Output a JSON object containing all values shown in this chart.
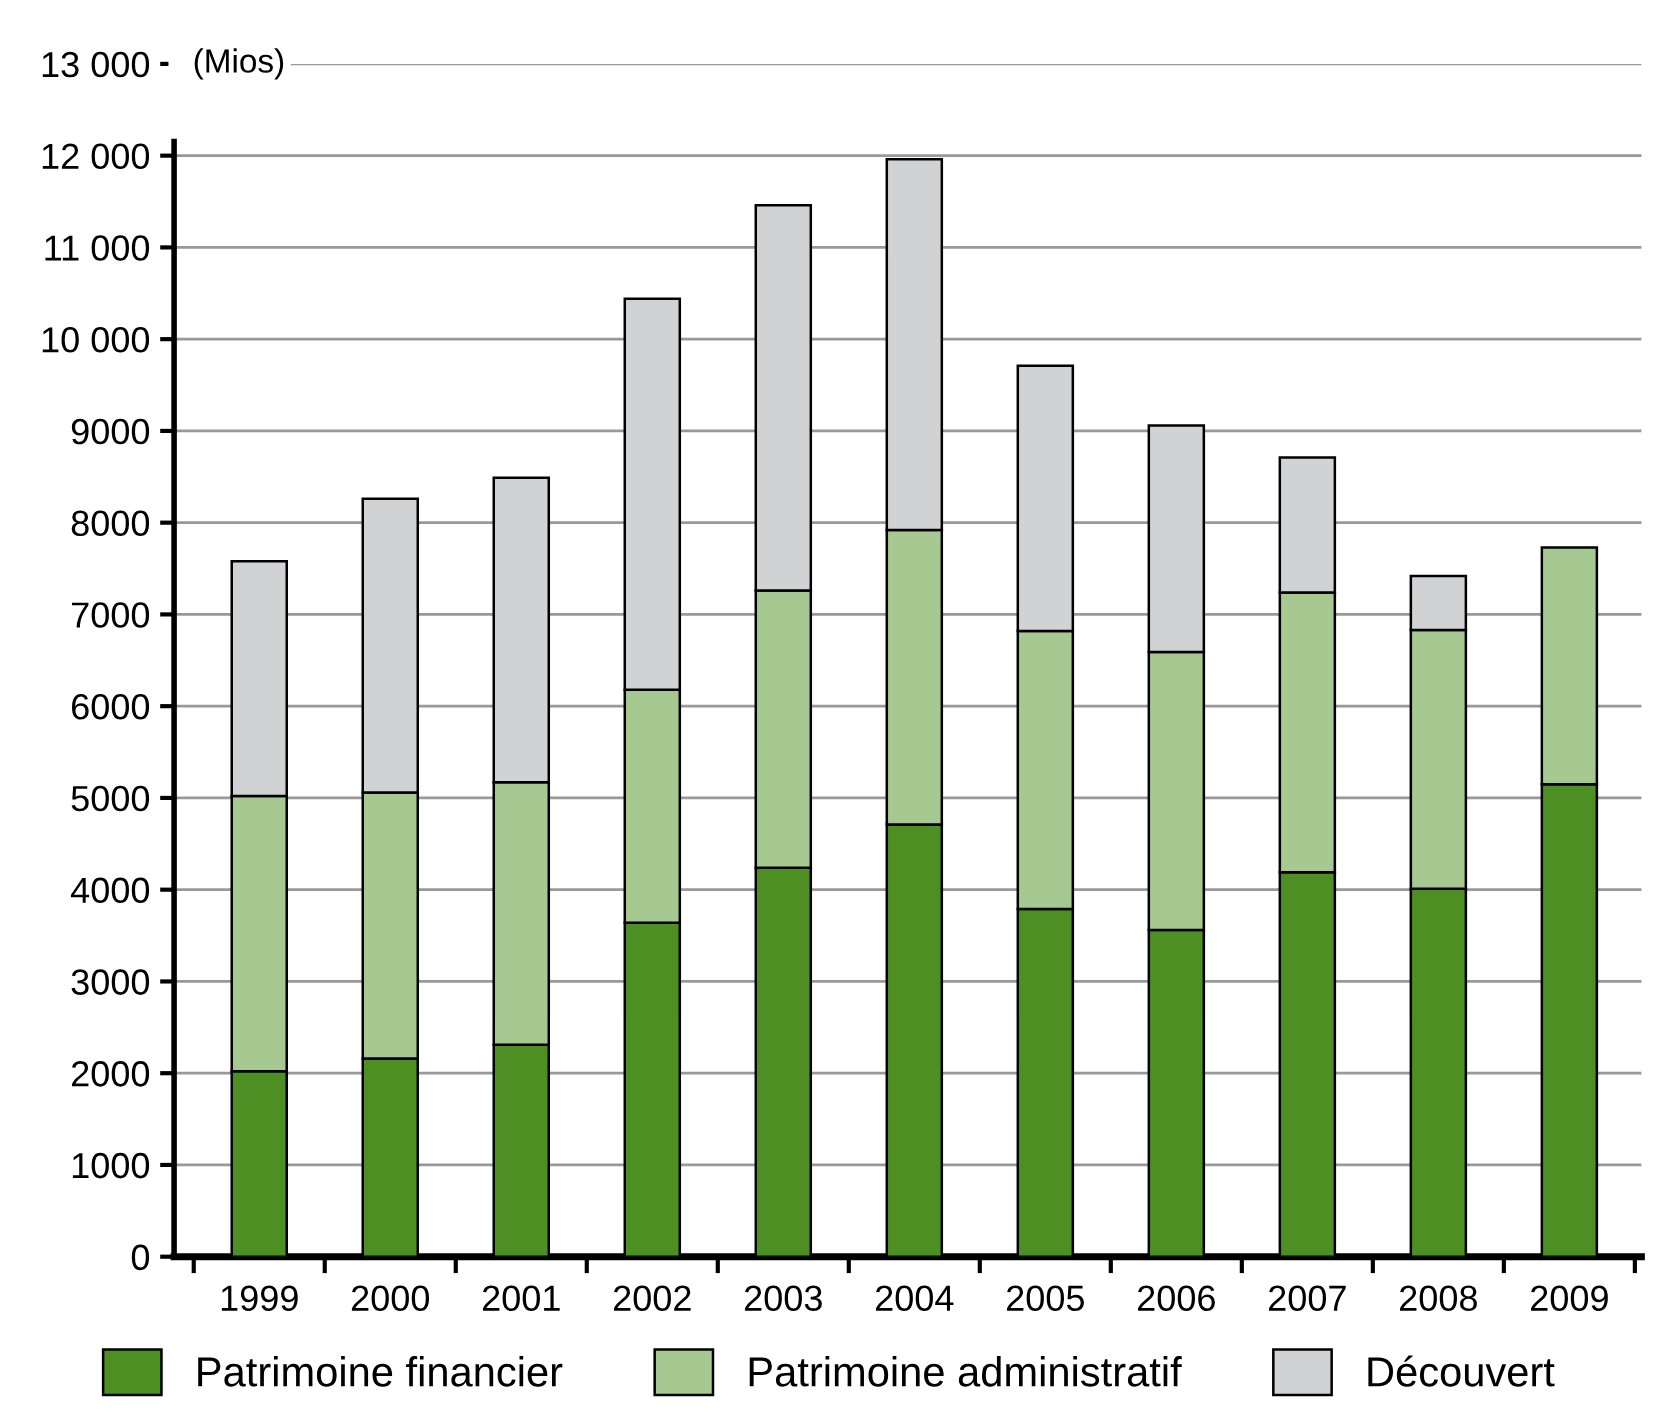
{
  "chart_data": {
    "type": "bar",
    "stacked": true,
    "ylabel": "(Mios)",
    "categories": [
      "1999",
      "2000",
      "2001",
      "2002",
      "2003",
      "2004",
      "2005",
      "2006",
      "2007",
      "2008",
      "2009"
    ],
    "series": [
      {
        "name": "Patrimoine financier",
        "color": "#4d8f23",
        "values": [
          2020,
          2160,
          2310,
          3640,
          4240,
          4710,
          3790,
          3560,
          4190,
          4010,
          5150
        ]
      },
      {
        "name": "Patrimoine administratif",
        "color": "#a6c991",
        "values": [
          3000,
          2900,
          2860,
          2540,
          3020,
          3210,
          3030,
          3030,
          3050,
          2820,
          2580
        ]
      },
      {
        "name": "Découvert",
        "color": "#d1d2d4",
        "values": [
          2560,
          3200,
          3320,
          4260,
          4200,
          4040,
          2890,
          2470,
          1470,
          590,
          null
        ]
      }
    ],
    "ylim": [
      0,
      13000
    ],
    "yticks": [
      0,
      1000,
      2000,
      3000,
      4000,
      5000,
      6000,
      7000,
      8000,
      9000,
      {
        "value": 10000,
        "label": "10 000"
      },
      {
        "value": 11000,
        "label": "11 000"
      },
      {
        "value": 12000,
        "label": "12 000"
      },
      {
        "value": 13000,
        "label": "13 000"
      }
    ],
    "grid": "y",
    "legend": "bottom"
  }
}
